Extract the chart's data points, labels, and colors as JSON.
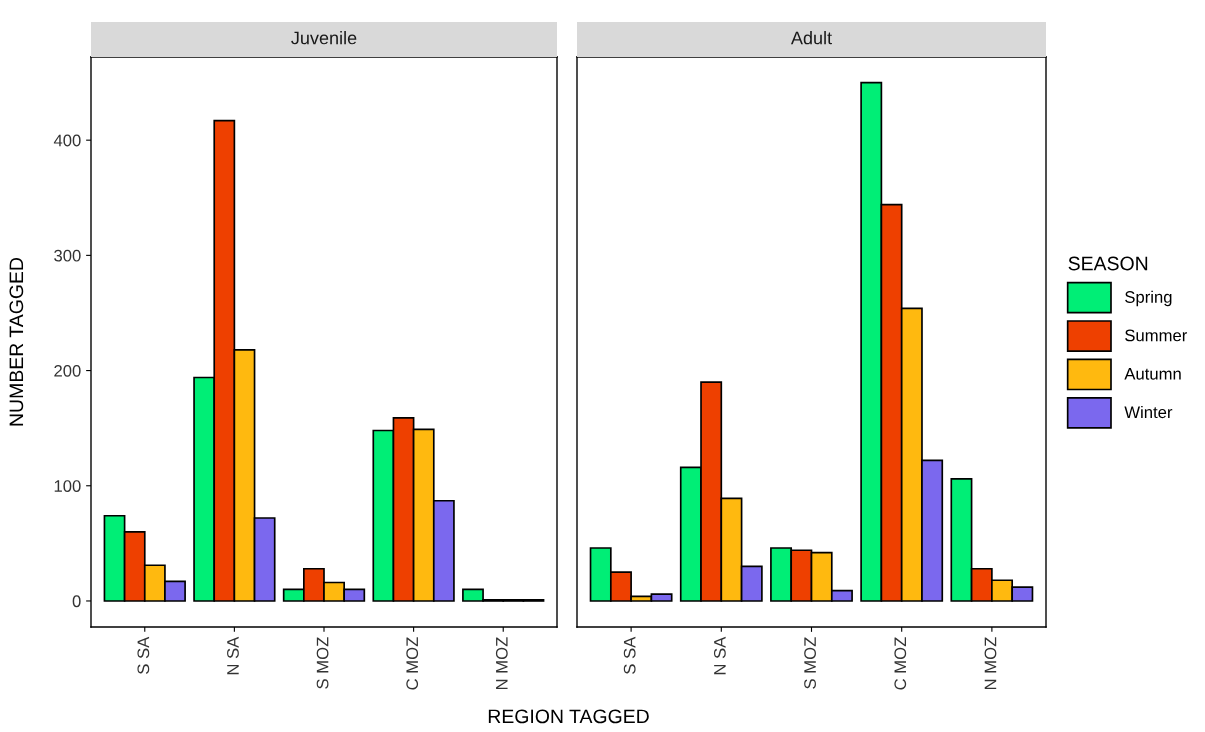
{
  "chart_data": [
    {
      "type": "bar",
      "title": "Juvenile",
      "xlabel": "REGION TAGGED",
      "ylabel": "NUMBER TAGGED",
      "categories": [
        "S SA",
        "N SA",
        "S MOZ",
        "C MOZ",
        "N MOZ"
      ],
      "ylim": [
        -22.6,
        472.2
      ],
      "yticks": [
        0,
        100,
        200,
        300,
        400
      ],
      "grid": false,
      "legend": "right",
      "legend_title": "SEASON",
      "series": [
        {
          "name": "Spring",
          "color": "#00ee76",
          "values": [
            74,
            194,
            10,
            148,
            10
          ]
        },
        {
          "name": "Summer",
          "color": "#ee4000",
          "values": [
            60,
            417,
            28,
            159,
            1
          ]
        },
        {
          "name": "Autumn",
          "color": "#ffb90f",
          "values": [
            31,
            218,
            16,
            149,
            1
          ]
        },
        {
          "name": "Winter",
          "color": "#7b68ee",
          "values": [
            17,
            72,
            10,
            87,
            1
          ]
        }
      ]
    },
    {
      "type": "bar",
      "title": "Adult",
      "categories": [
        "S SA",
        "N SA",
        "S MOZ",
        "C MOZ",
        "N MOZ"
      ],
      "ylim": [
        -22.6,
        472.2
      ],
      "yticks": [
        0,
        100,
        200,
        300,
        400
      ],
      "tick_labels": "x",
      "grid": false,
      "series": [
        {
          "color": "#00ee76",
          "values": [
            46,
            116,
            46,
            450,
            106
          ]
        },
        {
          "color": "#ee4000",
          "values": [
            25,
            190,
            44,
            344,
            28
          ]
        },
        {
          "color": "#ffb90f",
          "values": [
            4,
            89,
            42,
            254,
            18
          ]
        },
        {
          "color": "#7b68ee",
          "values": [
            6,
            30,
            9,
            122,
            12
          ]
        }
      ]
    }
  ]
}
